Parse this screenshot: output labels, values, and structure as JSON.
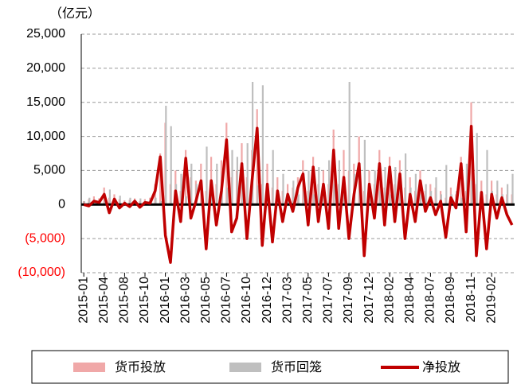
{
  "chart_data": {
    "type": "bar_line",
    "y_unit": "（亿元）",
    "categories": [
      "2015-01",
      null,
      null,
      null,
      "2015-04",
      null,
      null,
      null,
      "2015-08",
      null,
      null,
      null,
      "2015-10",
      null,
      null,
      null,
      "2016-01",
      null,
      null,
      null,
      "2016-03",
      null,
      null,
      null,
      "2016-05",
      null,
      null,
      null,
      "2016-07",
      null,
      null,
      null,
      "2016-10",
      null,
      null,
      null,
      "2016-12",
      null,
      null,
      null,
      "2017-03",
      null,
      null,
      null,
      "2017-05",
      null,
      null,
      null,
      "2017-07",
      null,
      null,
      null,
      "2017-09",
      null,
      null,
      null,
      "2017-12",
      null,
      null,
      null,
      "2018-02",
      null,
      null,
      null,
      "2018-04",
      null,
      null,
      null,
      "2018-07",
      null,
      null,
      null,
      "2018-09",
      null,
      null,
      null,
      "2018-11",
      null,
      null,
      null,
      "2019-02",
      null,
      null,
      null,
      null
    ],
    "series": [
      {
        "name": "货币投放",
        "color": "#f0a8a8",
        "kind": "bar",
        "values": [
          500,
          800,
          1200,
          900,
          2500,
          1000,
          1500,
          800,
          600,
          700,
          900,
          500,
          800,
          1000,
          3000,
          7500,
          12000,
          3000,
          5000,
          2000,
          8000,
          4000,
          3500,
          6000,
          2000,
          7000,
          3000,
          6500,
          12000,
          4000,
          5000,
          9000,
          4000,
          8000,
          14000,
          3000,
          6000,
          2500,
          4000,
          2000,
          3000,
          2500,
          4000,
          6500,
          2000,
          7000,
          3000,
          5000,
          3000,
          11000,
          3000,
          8000,
          5000,
          6000,
          10000,
          2000,
          5000,
          3000,
          8000,
          2500,
          7000,
          3000,
          6500,
          2500,
          4000,
          2000,
          5000,
          2000,
          3000,
          2500,
          2000,
          1000,
          2500,
          1500,
          7000,
          2000,
          15000,
          3000,
          3500,
          1500,
          3500,
          1500,
          2500,
          1500,
          1500
        ]
      },
      {
        "name": "货币回笼",
        "color": "#bfbfbf",
        "kind": "bar",
        "values": [
          500,
          1000,
          700,
          600,
          1000,
          2200,
          700,
          1300,
          400,
          1000,
          400,
          900,
          500,
          800,
          1000,
          500,
          14500,
          11500,
          3000,
          4500,
          1200,
          6000,
          3000,
          2500,
          8500,
          3500,
          6000,
          4500,
          2500,
          8000,
          7000,
          3000,
          9000,
          18000,
          2800,
          17500,
          3000,
          8000,
          2000,
          4500,
          1500,
          3500,
          1500,
          2000,
          5000,
          1500,
          5500,
          2000,
          6500,
          3000,
          6500,
          4000,
          18000,
          4500,
          4000,
          9500,
          2000,
          5000,
          2000,
          5500,
          1500,
          5500,
          2000,
          7500,
          2500,
          4500,
          1500,
          3000,
          2000,
          4000,
          1500,
          5800,
          1500,
          2000,
          1000,
          6000,
          3500,
          10500,
          1700,
          8000,
          2000,
          3500,
          1500,
          3000,
          4500
        ]
      },
      {
        "name": "净投放",
        "color": "#c00000",
        "kind": "line",
        "values": [
          0,
          -200,
          500,
          300,
          1500,
          -1200,
          800,
          -500,
          200,
          -300,
          500,
          -400,
          300,
          200,
          2000,
          7000,
          -4500,
          -8500,
          2000,
          -2500,
          6800,
          -2000,
          500,
          3500,
          -6500,
          3500,
          -3000,
          2000,
          9500,
          -4000,
          -2000,
          6000,
          -5000,
          3500,
          11200,
          -6000,
          3000,
          -5500,
          2000,
          -2500,
          1500,
          -1000,
          2500,
          4500,
          -3000,
          5500,
          -2500,
          3000,
          -3500,
          8000,
          -3500,
          4000,
          -5000,
          1500,
          6000,
          -7500,
          3000,
          -2000,
          6000,
          -3000,
          5500,
          -2500,
          4500,
          -5000,
          1500,
          -2500,
          3500,
          -1000,
          1000,
          -1500,
          500,
          -4800,
          1000,
          -500,
          6000,
          -4000,
          11500,
          -7500,
          1800,
          -6500,
          1500,
          -2000,
          1000,
          -1500,
          -3000
        ]
      }
    ],
    "ylim": [
      -10000,
      25000
    ],
    "yticks": [
      {
        "value": -10000,
        "label": "(10,000)"
      },
      {
        "value": -5000,
        "label": "(5,000)"
      },
      0,
      {
        "value": 5000,
        "label": "5,000"
      },
      {
        "value": 10000,
        "label": "10,000"
      },
      {
        "value": 15000,
        "label": "15,000"
      },
      {
        "value": 20000,
        "label": "20,000"
      },
      {
        "value": 25000,
        "label": "25,000"
      }
    ],
    "negative_label_color": "#ff0000",
    "grid": true
  }
}
